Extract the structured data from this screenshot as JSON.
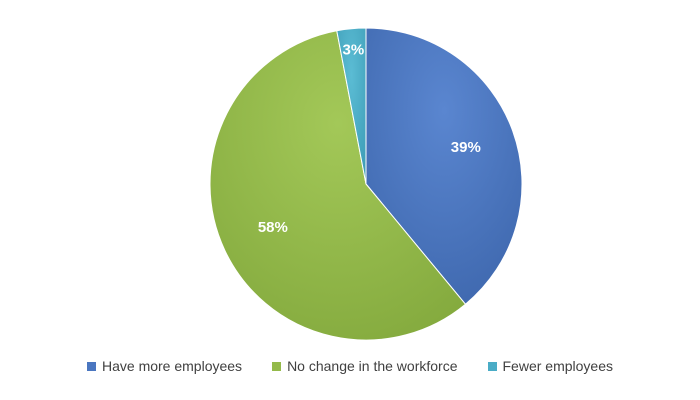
{
  "chart_data": {
    "type": "pie",
    "title": "",
    "categories": [
      "Have more employees",
      "No change in the workforce",
      "Fewer employees"
    ],
    "values": [
      39,
      58,
      3
    ],
    "labels": [
      "39%",
      "58%",
      "3%"
    ],
    "colors": [
      "#4a76c0",
      "#94ba4a",
      "#4aacc6"
    ],
    "start": "12 o'clock, clockwise",
    "legend": "bottom"
  }
}
